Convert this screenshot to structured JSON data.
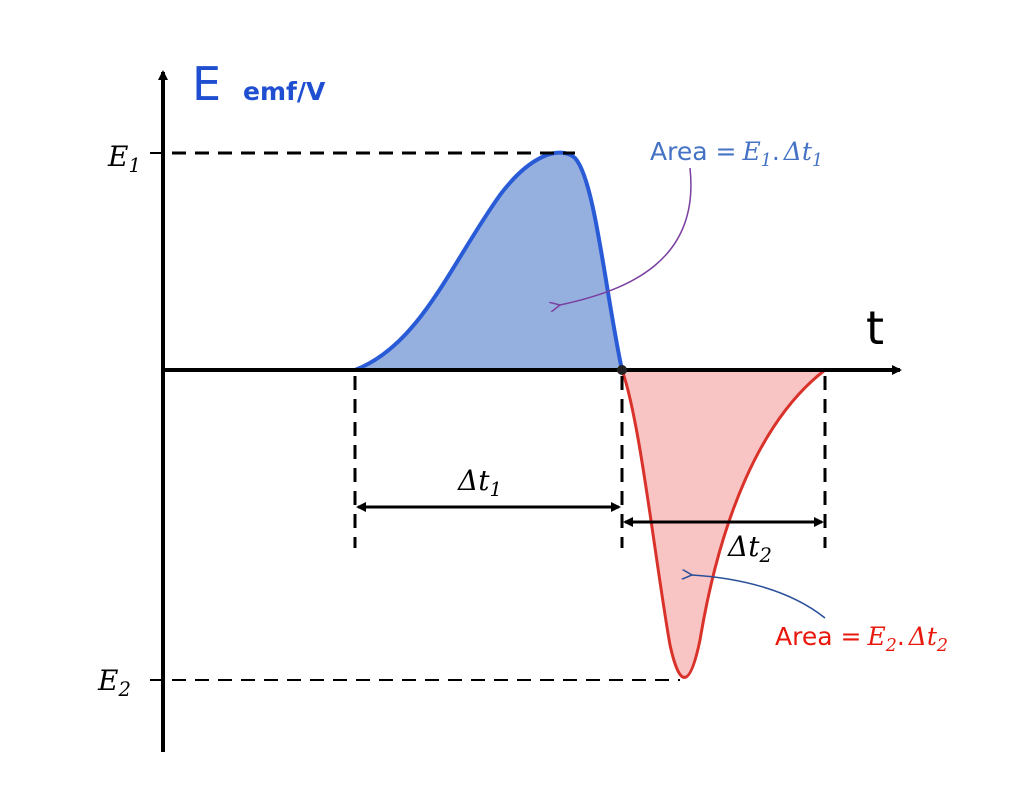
{
  "axes": {
    "y_label": "E",
    "y_unit": "emf/V",
    "x_label": "t"
  },
  "levels": [
    {
      "symbol": "E",
      "sub": "1"
    },
    {
      "symbol": "E",
      "sub": "2"
    }
  ],
  "intervals": [
    {
      "symbol": "Δt",
      "sub": "1"
    },
    {
      "symbol": "Δt",
      "sub": "2"
    }
  ],
  "areas": [
    {
      "prefix": "Area =",
      "symbol": "E",
      "sub": "1",
      "sep": ".",
      "symbol2": "Δt",
      "sub2": "1"
    },
    {
      "prefix": "Area =",
      "symbol": "E",
      "sub": "2",
      "sep": ".",
      "symbol2": "Δt",
      "sub2": "2"
    }
  ]
}
